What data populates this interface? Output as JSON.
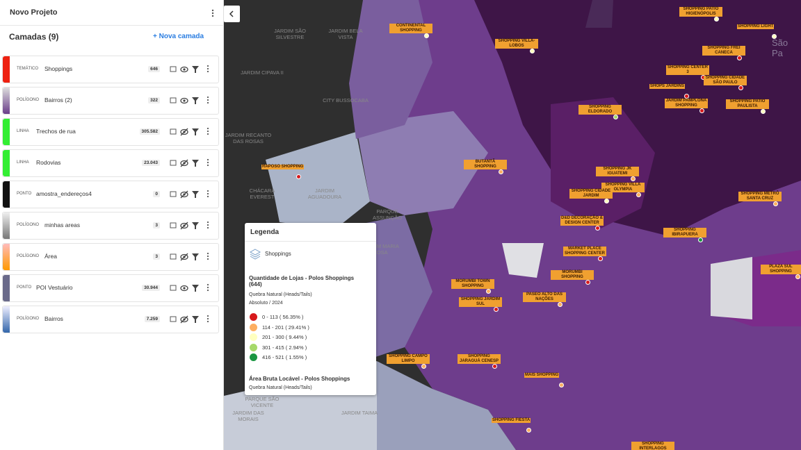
{
  "header": {
    "title": "Novo Projeto"
  },
  "layers_panel": {
    "title": "Camadas (9)",
    "add_button": "+ Nova camada",
    "layers": [
      {
        "type": "TEMÁTICO",
        "name": "Shoppings",
        "count": "646"
      },
      {
        "type": "POLÍGONO",
        "name": "Bairros (2)",
        "count": "322"
      },
      {
        "type": "LINHA",
        "name": "Trechos de rua",
        "count": "305.582"
      },
      {
        "type": "LINHA",
        "name": "Rodovias",
        "count": "23.043"
      },
      {
        "type": "PONTO",
        "name": "amostra_endereços4",
        "count": "0"
      },
      {
        "type": "POLÍGONO",
        "name": "minhas areas",
        "count": "3"
      },
      {
        "type": "POLÍGONO",
        "name": "Área",
        "count": "3"
      },
      {
        "type": "PONTO",
        "name": "POI Vestuário",
        "count": "30.944"
      },
      {
        "type": "POLÍGONO",
        "name": "Bairros",
        "count": "7.259"
      }
    ]
  },
  "legend": {
    "title": "Legenda",
    "layer": "Shoppings",
    "section1": {
      "title": "Quantidade de Lojas - Polos Shoppings (644)",
      "method": "Quebra Natural (Heads/Tails)",
      "period": "Absoluto / 2024",
      "classes": [
        "0 - 113 ( 56.35% )",
        "114 - 201 ( 29.41% )",
        "201 - 300 ( 9.44% )",
        "301 - 415 ( 2.94% )",
        "416 - 521 ( 1.55% )"
      ]
    },
    "section2": {
      "title": "Área Bruta Locável - Polos Shoppings",
      "method": "Quebra Natural (Heads/Tails)"
    }
  },
  "map": {
    "city_label": "São Pa",
    "neighborhoods": [
      "JARDIM SÃO SILVESTRE",
      "JARDIM BELA VISTA",
      "JARDIM CIPAVA II",
      "CITY BUSSOCABA",
      "JARDIM RECANTO DAS ROSAS",
      "CHÁCARA EVEREST",
      "JARDIM AGUADOURA",
      "PARQUE ASSUNÇÃO",
      "JARDIM MARIA ROSA",
      "PARQUE SÃO VICENTE",
      "JARDIM TAIMA",
      "JARDIM DAS MORAIS"
    ],
    "shoppings": [
      "CONTINENTAL SHOPPING",
      "SHOPPING VILLA-LOBOS",
      "SHOPPING PATIO HIGIENÓPOLIS",
      "SHOPPING LIGHT",
      "SHOPPING FREI CANECA",
      "SHOPPING CENTER 3",
      "SHOPS JARDINS",
      "SHOPPING CIDADE SÃO PAULO",
      "JARDIM PAMPLONA SHOPPING",
      "SHOPPING PATIO PAULISTA",
      "SHOPPING ELDORADO",
      "RAPOSO SHOPPING",
      "BUTANTÃ SHOPPING",
      "SHOPPING JK IGUATEMI",
      "SHOPPING VILLA OLYMPIA",
      "SHOPPING CIDADE JARDIM",
      "SHOPPING METRÔ SANTA CRUZ",
      "D&D DECORAÇÃO & DESIGN CENTER",
      "SHOPPING IBIRAPUERA",
      "MARKET PLACE SHOPPING CENTER",
      "MORUMBI SHOPPING",
      "PLAZA SUL SHOPPING",
      "MORUMBI TOWN SHOPPING",
      "PASEO ALTO DAS NAÇÕES",
      "SHOPPING JARDIM SUL",
      "SHOPPING CAMPO LIMPO",
      "SHOPPING JARAGUÁ CENESP",
      "MAIS SHOPPING",
      "SHOPPING FIESTA",
      "SHOPPING INTERLAGOS"
    ]
  }
}
